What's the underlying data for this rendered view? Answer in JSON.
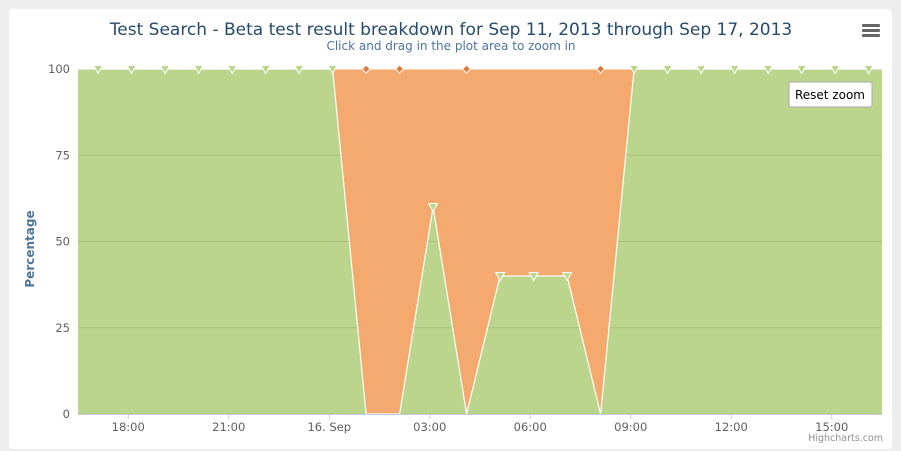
{
  "chart_data": {
    "type": "area",
    "stacking": "percent",
    "title": "Test Search - Beta test result breakdown for Sep 11, 2013 through Sep 17, 2013",
    "subtitle": "Click and drag in the plot area to zoom in",
    "xlabel": "",
    "ylabel": "Percentage",
    "ylim": [
      0,
      100
    ],
    "yticks": [
      0,
      25,
      50,
      75,
      100
    ],
    "x_ticks": [
      {
        "x": 1.5,
        "label": "18:00"
      },
      {
        "x": 4.5,
        "label": "21:00"
      },
      {
        "x": 7.5,
        "label": "16. Sep"
      },
      {
        "x": 10.5,
        "label": "03:00"
      },
      {
        "x": 13.5,
        "label": "06:00"
      },
      {
        "x": 16.5,
        "label": "09:00"
      },
      {
        "x": 19.5,
        "label": "12:00"
      },
      {
        "x": 22.5,
        "label": "15:00"
      }
    ],
    "xlim": [
      0,
      24
    ],
    "x": [
      0.6,
      1.6,
      2.6,
      3.6,
      4.6,
      5.6,
      6.6,
      7.6,
      8.6,
      9.6,
      10.6,
      11.6,
      12.6,
      13.6,
      14.6,
      15.6,
      16.6,
      17.6,
      18.6,
      19.6,
      20.6,
      21.6,
      22.6,
      23.6
    ],
    "series": [
      {
        "color": "#bbd68d",
        "marker": "triangle-down",
        "values": [
          100,
          100,
          100,
          100,
          100,
          100,
          100,
          100,
          null,
          0,
          60,
          0,
          40,
          40,
          40,
          0,
          100,
          100,
          100,
          100,
          100,
          100,
          100,
          100
        ]
      },
      {
        "color": "#f4a96e",
        "marker": "diamond",
        "values": [
          0,
          0,
          0,
          0,
          0,
          0,
          0,
          0,
          100,
          100,
          40,
          100,
          60,
          60,
          60,
          100,
          0,
          0,
          0,
          0,
          0,
          0,
          0,
          0
        ]
      }
    ],
    "grid": true,
    "legend": "none"
  },
  "ui": {
    "reset_zoom_label": "Reset zoom",
    "menu_icon": "hamburger-menu-icon",
    "credits": "Highcharts.com"
  }
}
